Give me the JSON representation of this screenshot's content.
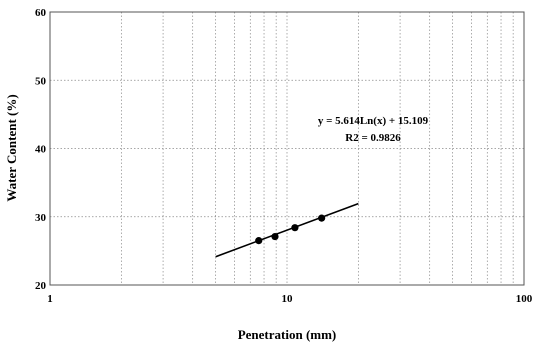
{
  "chart_data": {
    "type": "scatter",
    "xlabel": "Penetration (mm)",
    "ylabel": "Water Content (%)",
    "x_scale": "log",
    "xlim": [
      1,
      100
    ],
    "ylim": [
      20,
      60
    ],
    "x_ticks": [
      1,
      10,
      100
    ],
    "x_tick_labels": [
      "1",
      "10",
      "100"
    ],
    "y_ticks": [
      20,
      30,
      40,
      50,
      60
    ],
    "y_tick_labels": [
      "20",
      "30",
      "40",
      "50",
      "60"
    ],
    "grid": true,
    "series": [
      {
        "marker": "circle",
        "x": [
          7.6,
          8.9,
          10.8,
          14.0
        ],
        "y": [
          26.5,
          27.1,
          28.4,
          29.8
        ]
      }
    ],
    "trendline": {
      "type": "logarithmic",
      "a": 5.614,
      "b": 15.109,
      "x_range": [
        5,
        20
      ]
    },
    "annotations": {
      "equation": "y = 5.614Ln(x) + 15.109",
      "r2": "R2 = 0.9826"
    },
    "colors": {
      "marker": "#000000",
      "line": "#000000",
      "grid": "#8a8a8a"
    }
  }
}
